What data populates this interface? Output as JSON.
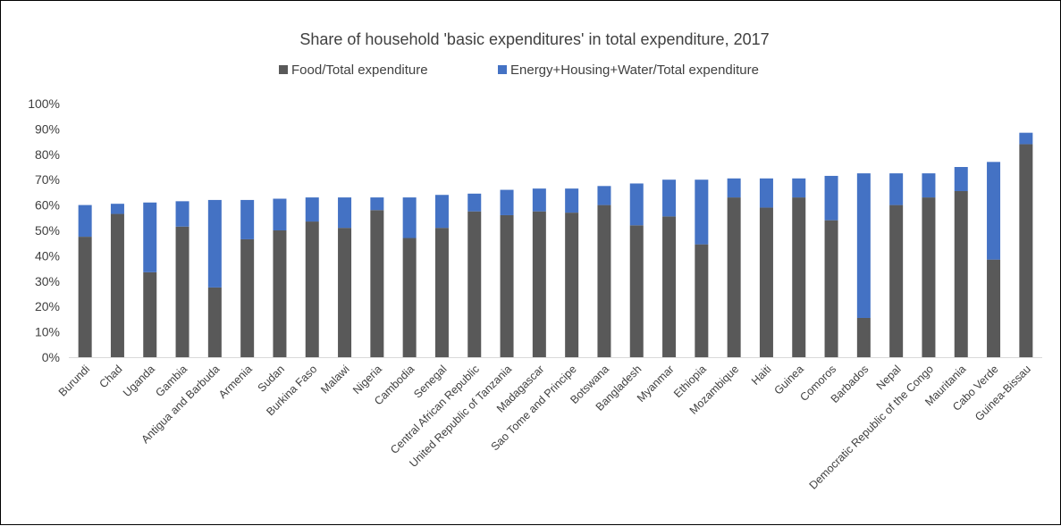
{
  "chart_data": {
    "type": "bar",
    "stacked": true,
    "title": "Share of household 'basic expenditures' in total expenditure, 2017",
    "xlabel": "",
    "ylabel": "",
    "ylim": [
      0,
      100
    ],
    "y_ticks": [
      "0%",
      "10%",
      "20%",
      "30%",
      "40%",
      "50%",
      "60%",
      "70%",
      "80%",
      "90%",
      "100%"
    ],
    "y_unit": "%",
    "grid": false,
    "legend_position": "top",
    "categories": [
      "Burundi",
      "Chad",
      "Uganda",
      "Gambia",
      "Antigua and Barbuda",
      "Armenia",
      "Sudan",
      "Burkina Faso",
      "Malawi",
      "Nigeria",
      "Cambodia",
      "Senegal",
      "Central African Republic",
      "United Republic of Tanzania",
      "Madagascar",
      "Sao Tome and Principe",
      "Botswana",
      "Bangladesh",
      "Myanmar",
      "Ethiopia",
      "Mozambique",
      "Haiti",
      "Guinea",
      "Comoros",
      "Barbados",
      "Nepal",
      "Democratic Republic of the Congo",
      "Mauritania",
      "Cabo Verde",
      "Guinea-Bissau"
    ],
    "series": [
      {
        "name": "Food/Total expenditure",
        "color": "#595959",
        "values": [
          47.5,
          56.5,
          33.5,
          51.5,
          27.5,
          46.5,
          50,
          53.5,
          51,
          58,
          47,
          51,
          57.5,
          56,
          57.5,
          57,
          60,
          52,
          55.5,
          44.5,
          63,
          59,
          63,
          54,
          15.5,
          60,
          63,
          65.5,
          38.5,
          84
        ]
      },
      {
        "name": "Energy+Housing+Water/Total expenditure",
        "color": "#4472C4",
        "values": [
          12.5,
          4,
          27.5,
          10,
          34.5,
          15.5,
          12.5,
          9.5,
          12,
          5,
          16,
          13,
          7,
          10,
          9,
          9.5,
          7.5,
          16.5,
          14.5,
          25.5,
          7.5,
          11.5,
          7.5,
          17.5,
          57,
          12.5,
          9.5,
          9.5,
          38.5,
          4.5
        ]
      }
    ]
  }
}
